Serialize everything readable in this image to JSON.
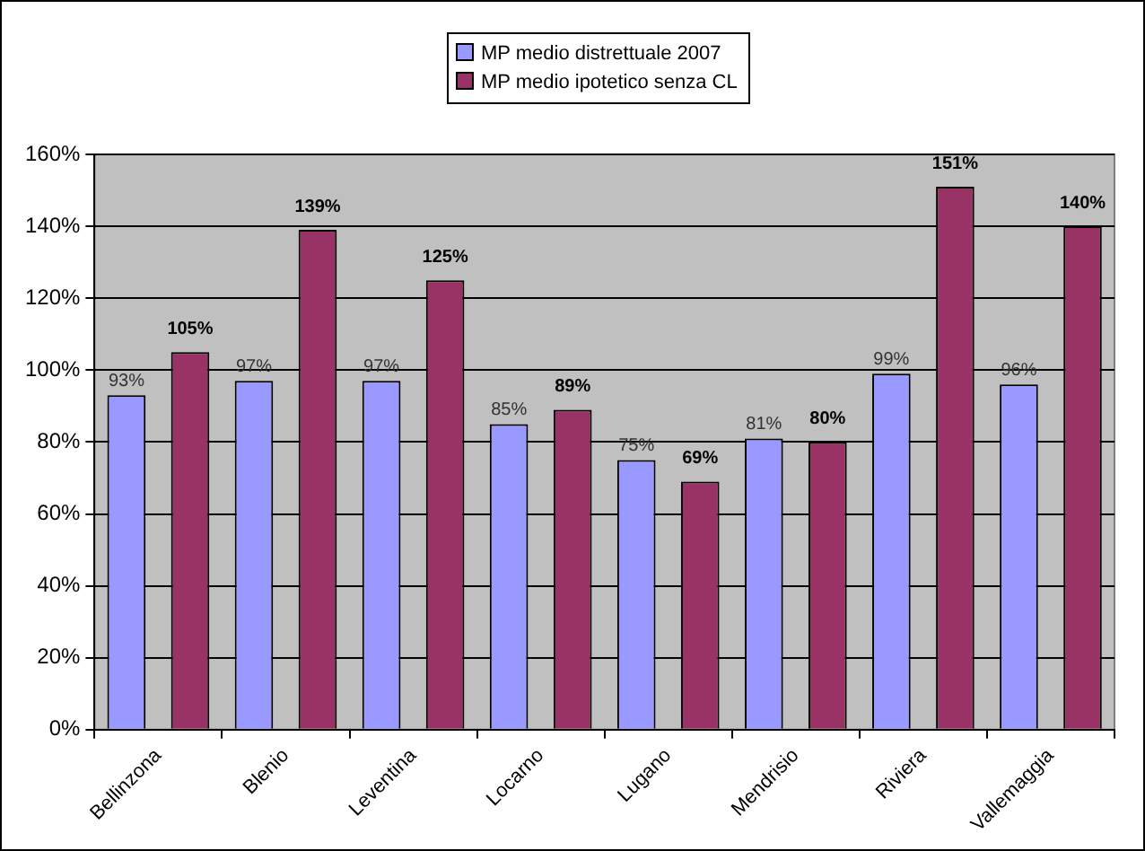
{
  "chart_data": {
    "type": "bar",
    "categories": [
      "Bellinzona",
      "Blenio",
      "Leventina",
      "Locarno",
      "Lugano",
      "Mendrisio",
      "Riviera",
      "Vallemaggia"
    ],
    "series": [
      {
        "name": "MP medio distrettuale 2007",
        "color": "#9999ff",
        "values": [
          93,
          97,
          97,
          85,
          75,
          81,
          99,
          96
        ],
        "value_labels": [
          "93%",
          "97%",
          "97%",
          "85%",
          "75%",
          "81%",
          "99%",
          "96%"
        ]
      },
      {
        "name": "MP medio ipotetico senza CL",
        "color": "#993366",
        "values": [
          105,
          139,
          125,
          89,
          69,
          80,
          151,
          140
        ],
        "value_labels": [
          "105%",
          "139%",
          "125%",
          "89%",
          "69%",
          "80%",
          "151%",
          "140%"
        ]
      }
    ],
    "ylim": [
      0,
      160
    ],
    "yticks": [
      {
        "value": 0,
        "label": "0%"
      },
      {
        "value": 20,
        "label": "20%"
      },
      {
        "value": 40,
        "label": "40%"
      },
      {
        "value": 60,
        "label": "60%"
      },
      {
        "value": 80,
        "label": "80%"
      },
      {
        "value": 100,
        "label": "100%"
      },
      {
        "value": 120,
        "label": "120%"
      },
      {
        "value": 140,
        "label": "140%"
      },
      {
        "value": 160,
        "label": "160%"
      }
    ],
    "grid": "y",
    "legend": "top"
  }
}
